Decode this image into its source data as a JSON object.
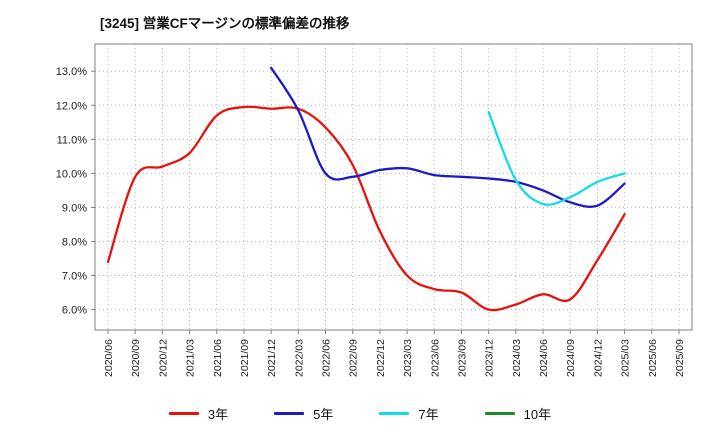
{
  "title": "[3245]  営業CFマージンの標準偏差の推移",
  "chart_data": {
    "type": "line",
    "title": "[3245]  営業CFマージンの標準偏差の推移",
    "xlabel": "",
    "ylabel": "",
    "ylim": [
      5.4,
      13.8
    ],
    "yticks": [
      6.0,
      7.0,
      8.0,
      9.0,
      10.0,
      11.0,
      12.0,
      13.0
    ],
    "ytick_suffix": "%",
    "grid": true,
    "legend_position": "bottom",
    "x_labels": [
      "2020/06",
      "2020/09",
      "2020/12",
      "2021/03",
      "2021/06",
      "2021/09",
      "2021/12",
      "2022/03",
      "2022/06",
      "2022/09",
      "2022/12",
      "2023/03",
      "2023/06",
      "2023/09",
      "2023/12",
      "2024/03",
      "2024/06",
      "2024/09",
      "2024/12",
      "2025/03",
      "2025/06",
      "2025/09"
    ],
    "series": [
      {
        "name": "3年",
        "color": "#e8110d",
        "values": [
          7.4,
          9.9,
          10.2,
          10.6,
          11.7,
          11.95,
          11.9,
          11.9,
          11.35,
          10.25,
          8.3,
          7.0,
          6.6,
          6.5,
          6.0,
          6.15,
          6.45,
          6.3,
          7.45,
          8.8,
          null,
          null
        ]
      },
      {
        "name": "5年",
        "color": "#1c1cc4",
        "values": [
          null,
          null,
          null,
          null,
          null,
          null,
          13.1,
          11.85,
          10.0,
          9.9,
          10.1,
          10.15,
          9.95,
          9.9,
          9.85,
          9.75,
          9.5,
          9.15,
          9.05,
          9.7,
          null,
          null
        ]
      },
      {
        "name": "7年",
        "color": "#0fdde8",
        "values": [
          null,
          null,
          null,
          null,
          null,
          null,
          null,
          null,
          null,
          null,
          null,
          null,
          null,
          null,
          11.8,
          9.8,
          9.1,
          9.3,
          9.75,
          10.0,
          null,
          null
        ]
      },
      {
        "name": "10年",
        "color": "#1a8a2a",
        "values": [
          null,
          null,
          null,
          null,
          null,
          null,
          null,
          null,
          null,
          null,
          null,
          null,
          null,
          null,
          null,
          null,
          null,
          null,
          null,
          null,
          null,
          null
        ]
      }
    ],
    "style": {
      "grid_color": "#b8b8b8",
      "axis_color": "#808080",
      "tick_label_color": "#222222",
      "line_width": 2.3
    }
  }
}
